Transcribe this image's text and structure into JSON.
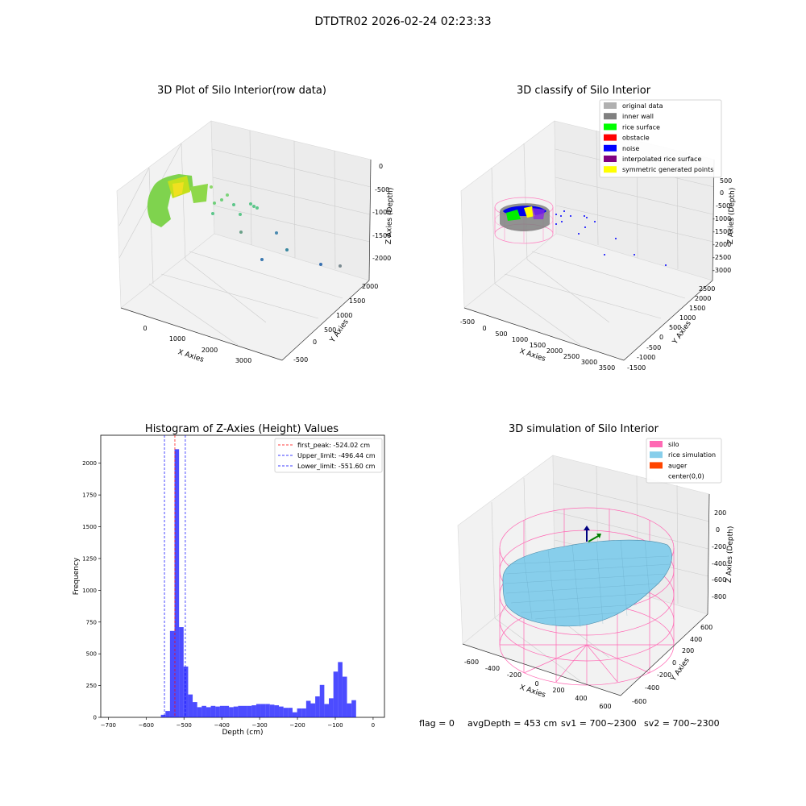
{
  "figure": {
    "title": "DTDTR02 2026-02-24 02:23:33",
    "footer": {
      "flag": "flag = 0",
      "avg": "avgDepth = 453 cm",
      "sv1": "sv1 = 700~2300",
      "sv2": "sv2 = 700~2300"
    }
  },
  "panels": {
    "raw": {
      "title": "3D Plot of Silo Interior(row data)",
      "xlabel": "X Axies",
      "ylabel": "Y Axies",
      "zlabel": "Z Axies (Depth)",
      "xticks": [
        "0",
        "1000",
        "2000",
        "3000"
      ],
      "yticks": [
        "-500",
        "0",
        "500",
        "1000",
        "1500",
        "2000"
      ],
      "zticks": [
        "0",
        "-500",
        "-1000",
        "-1500",
        "-2000"
      ]
    },
    "classify": {
      "title": "3D classify of Silo Interior",
      "xlabel": "X Axies",
      "ylabel": "Y Axies",
      "zlabel": "Z Axies (Depth)",
      "xticks": [
        "-500",
        "0",
        "500",
        "1000",
        "1500",
        "2000",
        "2500",
        "3000",
        "3500"
      ],
      "yticks": [
        "-1500",
        "-1000",
        "-500",
        "0",
        "500",
        "1000",
        "1500",
        "2000",
        "2500"
      ],
      "zticks": [
        "500",
        "0",
        "-500",
        "-1000",
        "-1500",
        "-2000",
        "-2500",
        "-3000"
      ],
      "legend": [
        {
          "label": "original data",
          "color": "#b0b0b0"
        },
        {
          "label": "inner wall",
          "color": "#808080"
        },
        {
          "label": "rice surface",
          "color": "#00ff00"
        },
        {
          "label": "obstacle",
          "color": "#ff0000"
        },
        {
          "label": "noise",
          "color": "#0000ff"
        },
        {
          "label": "interpolated rice surface",
          "color": "#800080"
        },
        {
          "label": "symmetric generated points",
          "color": "#ffff00"
        }
      ]
    },
    "simulation": {
      "title": "3D simulation of Silo Interior",
      "xlabel": "X Axies",
      "ylabel": "Y Axies",
      "zlabel": "Z Axies (Depth)",
      "xticks": [
        "-600",
        "-400",
        "-200",
        "0",
        "200",
        "400",
        "600"
      ],
      "yticks": [
        "-600",
        "-400",
        "-200",
        "0",
        "200",
        "400",
        "600"
      ],
      "zticks": [
        "200",
        "0",
        "-200",
        "-400",
        "-600",
        "-800"
      ],
      "legend": [
        {
          "label": "silo",
          "color": "#ff69b4"
        },
        {
          "label": "rice simulation",
          "color": "#87ceeb"
        },
        {
          "label": "auger",
          "color": "#ff4500"
        },
        {
          "label": "center(0,0)",
          "color": "#ffffff"
        }
      ]
    }
  },
  "chart_data": {
    "type": "bar",
    "title": "Histogram of Z-Axies (Height) Values",
    "xlabel": "Depth (cm)",
    "ylabel": "Frequency",
    "xlim": [
      -720,
      30
    ],
    "ylim": [
      0,
      2220
    ],
    "xticks": [
      -700,
      -600,
      -500,
      -400,
      -300,
      -200,
      -100,
      0
    ],
    "yticks": [
      0,
      250,
      500,
      750,
      1000,
      1250,
      1500,
      1750,
      2000
    ],
    "bar_color": "#0000ff",
    "bin_width": 12,
    "bins": [
      {
        "x": -555,
        "value": 20
      },
      {
        "x": -543,
        "value": 50
      },
      {
        "x": -531,
        "value": 680
      },
      {
        "x": -519,
        "value": 2110
      },
      {
        "x": -507,
        "value": 710
      },
      {
        "x": -495,
        "value": 400
      },
      {
        "x": -483,
        "value": 180
      },
      {
        "x": -471,
        "value": 120
      },
      {
        "x": -459,
        "value": 80
      },
      {
        "x": -447,
        "value": 90
      },
      {
        "x": -435,
        "value": 80
      },
      {
        "x": -423,
        "value": 90
      },
      {
        "x": -411,
        "value": 85
      },
      {
        "x": -399,
        "value": 90
      },
      {
        "x": -387,
        "value": 90
      },
      {
        "x": -375,
        "value": 80
      },
      {
        "x": -363,
        "value": 85
      },
      {
        "x": -351,
        "value": 90
      },
      {
        "x": -339,
        "value": 90
      },
      {
        "x": -327,
        "value": 90
      },
      {
        "x": -315,
        "value": 95
      },
      {
        "x": -303,
        "value": 105
      },
      {
        "x": -291,
        "value": 105
      },
      {
        "x": -279,
        "value": 105
      },
      {
        "x": -267,
        "value": 100
      },
      {
        "x": -255,
        "value": 95
      },
      {
        "x": -243,
        "value": 85
      },
      {
        "x": -231,
        "value": 75
      },
      {
        "x": -219,
        "value": 75
      },
      {
        "x": -207,
        "value": 40
      },
      {
        "x": -195,
        "value": 70
      },
      {
        "x": -183,
        "value": 70
      },
      {
        "x": -171,
        "value": 130
      },
      {
        "x": -159,
        "value": 110
      },
      {
        "x": -147,
        "value": 165
      },
      {
        "x": -135,
        "value": 255
      },
      {
        "x": -123,
        "value": 105
      },
      {
        "x": -111,
        "value": 150
      },
      {
        "x": -99,
        "value": 360
      },
      {
        "x": -87,
        "value": 435
      },
      {
        "x": -75,
        "value": 320
      },
      {
        "x": -63,
        "value": 110
      },
      {
        "x": -51,
        "value": 135
      }
    ],
    "vlines": [
      {
        "x": -524.02,
        "color": "#ff0000",
        "label": "first_peak: -524.02 cm"
      },
      {
        "x": -496.44,
        "color": "#0000ff",
        "label": "Upper_limit: -496.44 cm"
      },
      {
        "x": -551.6,
        "color": "#0000ff",
        "label": "Lower_limit: -551.60 cm"
      }
    ]
  }
}
